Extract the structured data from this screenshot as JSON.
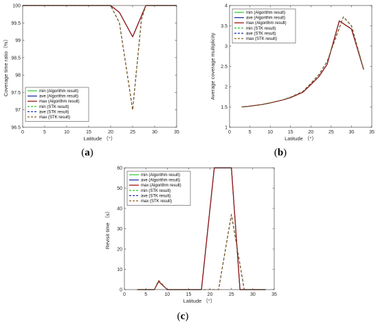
{
  "chart_data": [
    {
      "panel": "(a)",
      "type": "line",
      "xlabel": "Latitude （°）",
      "ylabel": "Coverage time ratio（%）",
      "xlim": [
        0,
        35
      ],
      "ylim": [
        96.5,
        100
      ],
      "xticks": [
        0,
        5,
        10,
        15,
        20,
        25,
        30,
        35
      ],
      "yticks": [
        96.5,
        97,
        97.5,
        98,
        98.5,
        99,
        99.5,
        100
      ],
      "legend_position": "bottom-left",
      "grid": false,
      "series": [
        {
          "name": "min (Algorithm result)",
          "color": "#33cc33",
          "style": "solid",
          "x": [
            0,
            5,
            10,
            15,
            20,
            22,
            25,
            27,
            28,
            35
          ],
          "y": [
            100,
            100,
            100,
            100,
            100,
            99.8,
            99.1,
            99.7,
            100,
            100
          ]
        },
        {
          "name": "ave (Algorithm result)",
          "color": "#1f2fa8",
          "style": "solid",
          "x": [
            0,
            5,
            10,
            15,
            20,
            22,
            25,
            27,
            28,
            35
          ],
          "y": [
            100,
            100,
            100,
            100,
            100,
            99.8,
            99.1,
            99.7,
            100,
            100
          ]
        },
        {
          "name": "max (Algorithm result)",
          "color": "#a31515",
          "style": "solid",
          "x": [
            0,
            5,
            10,
            15,
            20,
            22,
            25,
            27,
            28,
            35
          ],
          "y": [
            100,
            100,
            100,
            100,
            100,
            99.8,
            99.1,
            99.7,
            100,
            100
          ]
        },
        {
          "name": "min (STK result)",
          "color": "#33cc33",
          "style": "dashed",
          "x": [
            0,
            5,
            10,
            15,
            20,
            22,
            25,
            27,
            28,
            35
          ],
          "y": [
            100,
            100,
            100,
            100,
            100,
            99.5,
            97.0,
            99.6,
            100,
            100
          ]
        },
        {
          "name": "ave (STK result)",
          "color": "#1f2fa8",
          "style": "dashed",
          "x": [
            0,
            5,
            10,
            15,
            20,
            22,
            25,
            27,
            28,
            35
          ],
          "y": [
            100,
            100,
            100,
            100,
            100,
            99.5,
            97.0,
            99.6,
            100,
            100
          ]
        },
        {
          "name": "max (STK result)",
          "color": "#8a5a1a",
          "style": "dashed",
          "x": [
            0,
            5,
            10,
            15,
            20,
            22,
            25,
            27,
            28,
            35
          ],
          "y": [
            100,
            100,
            100,
            100,
            100,
            99.5,
            97.0,
            99.6,
            100,
            100
          ]
        }
      ]
    },
    {
      "panel": "(b)",
      "type": "line",
      "xlabel": "Latitude （°）",
      "ylabel": "Average coverage multiplicity",
      "xlim": [
        0,
        35
      ],
      "ylim": [
        1,
        4
      ],
      "xticks": [
        0,
        5,
        10,
        15,
        20,
        25,
        30,
        35
      ],
      "yticks": [
        1,
        1.5,
        2,
        2.5,
        3,
        3.5,
        4
      ],
      "legend_position": "top-left",
      "grid": false,
      "series": [
        {
          "name": "min (Algorithm result)",
          "color": "#33cc33",
          "style": "solid",
          "x": [
            3,
            5,
            8,
            10,
            13,
            15,
            18,
            20,
            22,
            24,
            27,
            30,
            33
          ],
          "y": [
            1.5,
            1.52,
            1.56,
            1.6,
            1.67,
            1.73,
            1.86,
            2.05,
            2.25,
            2.55,
            3.62,
            3.42,
            2.42
          ]
        },
        {
          "name": "ave (Algorithm result)",
          "color": "#1f2fa8",
          "style": "solid",
          "x": [
            3,
            5,
            8,
            10,
            13,
            15,
            18,
            20,
            22,
            24,
            27,
            30,
            33
          ],
          "y": [
            1.5,
            1.52,
            1.56,
            1.6,
            1.67,
            1.73,
            1.86,
            2.05,
            2.25,
            2.55,
            3.62,
            3.42,
            2.42
          ]
        },
        {
          "name": "max (Algorithm result)",
          "color": "#a31515",
          "style": "solid",
          "x": [
            3,
            5,
            8,
            10,
            13,
            15,
            18,
            20,
            22,
            24,
            27,
            30,
            33
          ],
          "y": [
            1.5,
            1.52,
            1.56,
            1.6,
            1.67,
            1.73,
            1.86,
            2.05,
            2.25,
            2.55,
            3.62,
            3.42,
            2.42
          ]
        },
        {
          "name": "min (STK result)",
          "color": "#33cc33",
          "style": "dashed",
          "x": [
            3,
            5,
            8,
            10,
            13,
            15,
            18,
            20,
            22,
            24,
            28,
            30,
            33
          ],
          "y": [
            1.5,
            1.52,
            1.56,
            1.6,
            1.67,
            1.74,
            1.88,
            2.08,
            2.3,
            2.62,
            3.72,
            3.5,
            2.42
          ]
        },
        {
          "name": "ave (STK result)",
          "color": "#1f2fa8",
          "style": "dashed",
          "x": [
            3,
            5,
            8,
            10,
            13,
            15,
            18,
            20,
            22,
            24,
            28,
            30,
            33
          ],
          "y": [
            1.5,
            1.52,
            1.56,
            1.6,
            1.67,
            1.74,
            1.88,
            2.08,
            2.3,
            2.62,
            3.72,
            3.5,
            2.42
          ]
        },
        {
          "name": "max (STK result)",
          "color": "#8a5a1a",
          "style": "dashed",
          "x": [
            3,
            5,
            8,
            10,
            13,
            15,
            18,
            20,
            22,
            24,
            28,
            30,
            33
          ],
          "y": [
            1.5,
            1.52,
            1.56,
            1.6,
            1.67,
            1.74,
            1.88,
            2.08,
            2.3,
            2.62,
            3.72,
            3.5,
            2.42
          ]
        }
      ]
    },
    {
      "panel": "(c)",
      "type": "line",
      "xlabel": "Latitude （°）",
      "ylabel": "Revisit time （s）",
      "xlim": [
        0,
        35
      ],
      "ylim": [
        0,
        60
      ],
      "xticks": [
        0,
        5,
        10,
        15,
        20,
        25,
        30,
        35
      ],
      "yticks": [
        0,
        10,
        20,
        30,
        40,
        50,
        60
      ],
      "legend_position": "top-left",
      "grid": false,
      "series": [
        {
          "name": "min (Algorithm result)",
          "color": "#33cc33",
          "style": "solid",
          "x": [
            3,
            5,
            7,
            8,
            10,
            13,
            15,
            18,
            21,
            22,
            24,
            25,
            27,
            30,
            33
          ],
          "y": [
            0,
            0,
            0,
            4,
            0,
            0,
            0,
            0,
            60,
            60,
            60,
            60,
            0,
            0,
            0
          ]
        },
        {
          "name": "ave (Algorithm result)",
          "color": "#1f2fa8",
          "style": "solid",
          "x": [
            3,
            5,
            7,
            8,
            10,
            13,
            15,
            18,
            21,
            22,
            24,
            25,
            27,
            30,
            33
          ],
          "y": [
            0,
            0,
            0,
            4,
            0,
            0,
            0,
            0,
            60,
            60,
            60,
            60,
            0,
            0,
            0
          ]
        },
        {
          "name": "max (Algorithm result)",
          "color": "#a31515",
          "style": "solid",
          "x": [
            3,
            5,
            7,
            8,
            10,
            13,
            15,
            18,
            21,
            22,
            24,
            25,
            27,
            30,
            33
          ],
          "y": [
            0,
            0,
            0,
            4,
            0,
            0,
            0,
            0,
            60,
            60,
            60,
            60,
            0,
            0,
            0
          ]
        },
        {
          "name": "min (STK result)",
          "color": "#33cc33",
          "style": "dashed",
          "x": [
            3,
            5,
            7,
            8,
            10,
            13,
            15,
            18,
            20,
            22,
            25,
            28,
            30,
            33
          ],
          "y": [
            0,
            0,
            0,
            4.5,
            0,
            0,
            0,
            0,
            0,
            0,
            37,
            0,
            0,
            0
          ]
        },
        {
          "name": "ave (STK result)",
          "color": "#1f2fa8",
          "style": "dashed",
          "x": [
            3,
            5,
            7,
            8,
            10,
            13,
            15,
            18,
            20,
            22,
            25,
            28,
            30,
            33
          ],
          "y": [
            0,
            0,
            0,
            4.5,
            0,
            0,
            0,
            0,
            0,
            0,
            37,
            0,
            0,
            0
          ]
        },
        {
          "name": "max (STK result)",
          "color": "#8a5a1a",
          "style": "dashed",
          "x": [
            3,
            5,
            7,
            8,
            10,
            13,
            15,
            18,
            20,
            22,
            25,
            28,
            30,
            33
          ],
          "y": [
            0,
            0,
            0,
            4.5,
            0,
            0,
            0,
            0,
            0,
            0,
            37,
            0,
            0,
            0
          ]
        }
      ]
    }
  ],
  "panel_labels": {
    "a": {
      "open": "(",
      "letter": "a",
      "close": ")"
    },
    "b": {
      "open": "(",
      "letter": "b",
      "close": ")"
    },
    "c": {
      "open": "(",
      "letter": "c",
      "close": ")"
    }
  }
}
